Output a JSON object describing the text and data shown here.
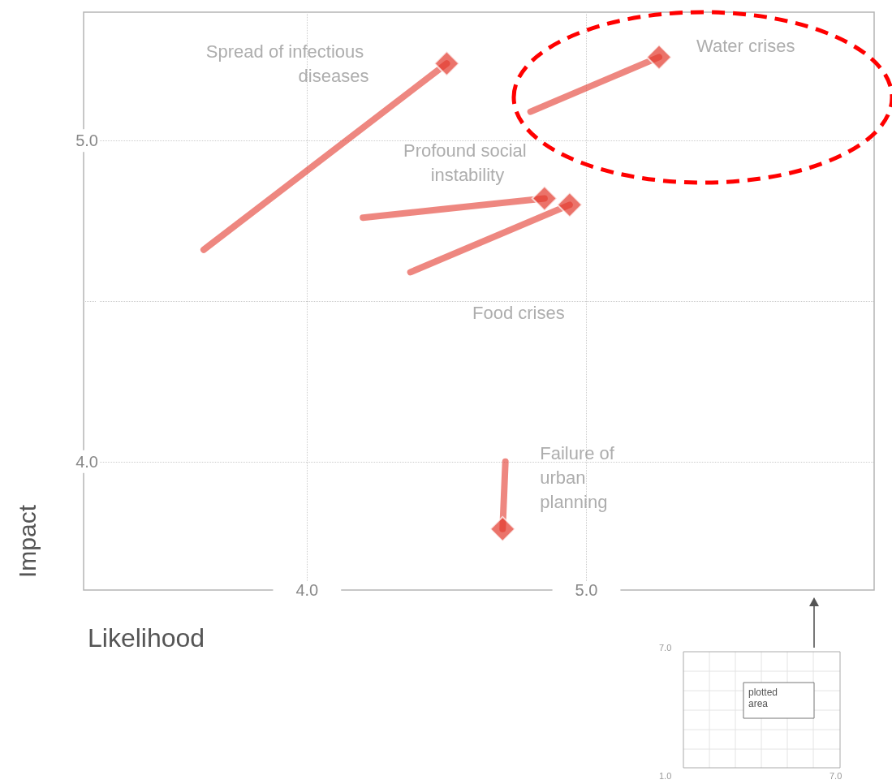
{
  "chart_data": {
    "type": "line",
    "xlabel": "Likelihood",
    "ylabel": "Impact",
    "xlim": [
      3.2,
      6.03
    ],
    "xticks": [
      {
        "value": 4.0,
        "label": "4.0"
      },
      {
        "value": 5.0,
        "label": "5.0"
      }
    ],
    "ylim": [
      3.6,
      5.4
    ],
    "yticks": [
      {
        "value": 4.0,
        "label": "4.0"
      },
      {
        "value": 4.5,
        "label": null
      },
      {
        "value": 5.0,
        "label": "5.0"
      }
    ],
    "grid": true,
    "marker": "diamond",
    "legend": false,
    "series": [
      {
        "name": "Spread of infectious diseases",
        "color": "#e2372b",
        "x": [
          3.63,
          4.5
        ],
        "values": [
          4.66,
          5.24
        ]
      },
      {
        "name": "Water crises",
        "color": "#e2372b",
        "x": [
          4.8,
          5.26
        ],
        "values": [
          5.09,
          5.26
        ]
      },
      {
        "name": "Profound social instability",
        "color": "#e2372b",
        "x": [
          4.2,
          4.85
        ],
        "values": [
          4.76,
          4.82
        ]
      },
      {
        "name": "Food crises",
        "color": "#e2372b",
        "x": [
          4.37,
          4.94
        ],
        "values": [
          4.59,
          4.8
        ]
      },
      {
        "name": "Failure of urban planning",
        "color": "#e2372b",
        "x": [
          4.71,
          4.7
        ],
        "values": [
          4.0,
          3.79
        ]
      }
    ],
    "annotations": [
      "plotted area",
      "7.0",
      "1.0",
      "7.0"
    ]
  }
}
